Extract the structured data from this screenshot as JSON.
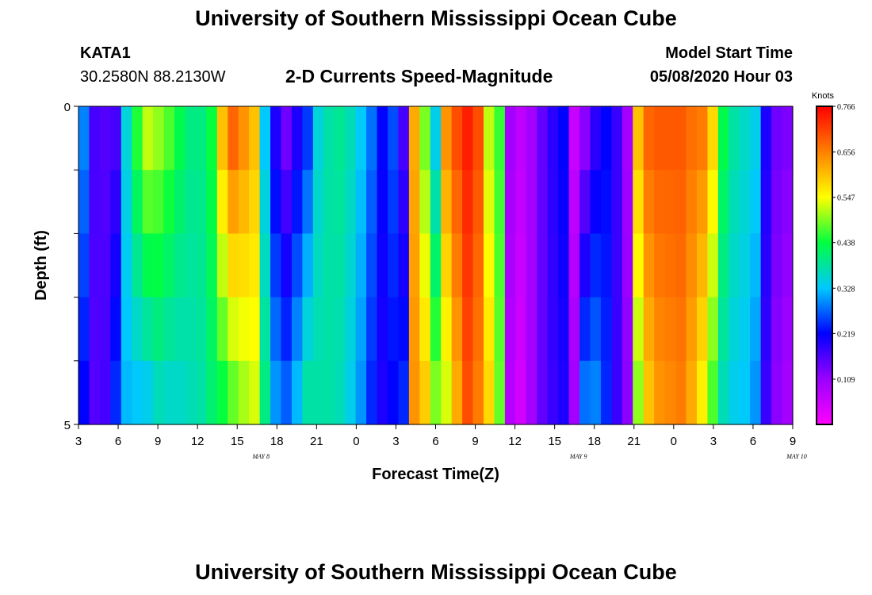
{
  "header": {
    "title": "University of Southern Mississippi Ocean Cube",
    "station_id": "KATA1",
    "station_coords": "30.2580N 88.2130W",
    "plot_title": "2-D Currents Speed-Magnitude",
    "start_label": "Model Start Time",
    "start_value": "05/08/2020 Hour 03"
  },
  "footer": {
    "title": "University of Southern Mississippi Ocean Cube"
  },
  "colors": {
    "scale": [
      "#ff00ff",
      "#9a00ff",
      "#0000ff",
      "#00c8ff",
      "#00ff40",
      "#ffff00",
      "#ff8000",
      "#ff0000"
    ]
  },
  "chart_data": {
    "type": "heatmap",
    "title": "2-D Currents Speed-Magnitude",
    "xlabel": "Forecast Time(Z)",
    "ylabel": "Depth (ft)",
    "colorbar_label": "Knots",
    "value_range": [
      0.0,
      0.766
    ],
    "colorbar_ticks": [
      "0.766",
      "0.656",
      "0.547",
      "0.438",
      "0.328",
      "0.219",
      "0.109"
    ],
    "colorbar_values": [
      0.766,
      0.656,
      0.547,
      0.438,
      0.328,
      0.219,
      0.109
    ],
    "y_ticks": [
      "0",
      "5"
    ],
    "y_range": [
      0,
      5
    ],
    "x_ticks": [
      "3",
      "6",
      "9",
      "12",
      "15",
      "18",
      "21",
      "0",
      "3",
      "6",
      "9",
      "12",
      "15",
      "18",
      "21",
      "0",
      "3",
      "6",
      "9"
    ],
    "date_labels": [
      {
        "text": "MAY 8",
        "hour": 13.5
      },
      {
        "text": "MAY 9",
        "hour": 37.5
      },
      {
        "text": "MAY 10",
        "hour": 54
      }
    ],
    "hours_total": 54,
    "depth_layers": 5,
    "surface_speed": [
      0.29,
      0.17,
      0.16,
      0.17,
      0.35,
      0.45,
      0.52,
      0.5,
      0.47,
      0.43,
      0.4,
      0.4,
      0.44,
      0.6,
      0.68,
      0.64,
      0.6,
      0.33,
      0.2,
      0.14,
      0.2,
      0.25,
      0.35,
      0.38,
      0.39,
      0.37,
      0.33,
      0.28,
      0.22,
      0.26,
      0.17,
      0.62,
      0.49,
      0.34,
      0.64,
      0.7,
      0.74,
      0.7,
      0.52,
      0.46,
      0.1,
      0.07,
      0.1,
      0.15,
      0.19,
      0.22,
      0.06,
      0.12,
      0.19,
      0.22,
      0.18,
      0.1,
      0.6,
      0.68,
      0.69,
      0.69,
      0.69,
      0.67,
      0.66,
      0.58,
      0.43,
      0.38,
      0.36,
      0.34,
      0.2,
      0.14,
      0.13
    ],
    "bottom_speed": [
      0.22,
      0.16,
      0.17,
      0.24,
      0.32,
      0.33,
      0.34,
      0.37,
      0.36,
      0.36,
      0.37,
      0.38,
      0.41,
      0.44,
      0.48,
      0.51,
      0.53,
      0.4,
      0.3,
      0.27,
      0.32,
      0.38,
      0.38,
      0.38,
      0.37,
      0.34,
      0.3,
      0.24,
      0.2,
      0.22,
      0.24,
      0.64,
      0.59,
      0.49,
      0.53,
      0.62,
      0.7,
      0.66,
      0.58,
      0.48,
      0.08,
      0.05,
      0.1,
      0.15,
      0.18,
      0.2,
      0.1,
      0.28,
      0.29,
      0.24,
      0.18,
      0.12,
      0.5,
      0.6,
      0.64,
      0.65,
      0.66,
      0.62,
      0.56,
      0.47,
      0.37,
      0.34,
      0.33,
      0.3,
      0.18,
      0.12,
      0.1
    ]
  }
}
